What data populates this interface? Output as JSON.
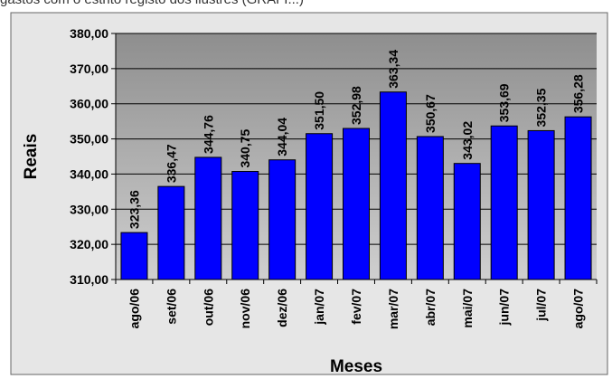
{
  "header": {
    "cropped_title": "gastos com o estrito registo dos ilustres (GRAFI...)"
  },
  "chart_data": {
    "type": "bar",
    "categories": [
      "ago/06",
      "set/06",
      "out/06",
      "nov/06",
      "dez/06",
      "jan/07",
      "fev/07",
      "mar/07",
      "abr/07",
      "mai/07",
      "jun/07",
      "jul/07",
      "ago/07"
    ],
    "values": [
      323.36,
      336.47,
      344.76,
      340.75,
      344.04,
      351.5,
      352.98,
      363.34,
      350.67,
      343.02,
      353.69,
      352.35,
      356.28
    ],
    "data_labels": [
      "323,36",
      "336,47",
      "344,76",
      "340,75",
      "344,04",
      "351,50",
      "352,98",
      "363,34",
      "350,67",
      "343,02",
      "353,69",
      "352,35",
      "356,28"
    ],
    "title": "",
    "xlabel": "Meses",
    "ylabel": "Reais",
    "ylim": [
      310,
      380
    ],
    "yticks": [
      "310,00",
      "320,00",
      "330,00",
      "340,00",
      "350,00",
      "360,00",
      "370,00",
      "380,00"
    ],
    "grid": true,
    "colors": {
      "bar": "#0000FF",
      "plot_area": "#A0A0A0",
      "background": "#E6E6E6",
      "gridline": "#000000"
    }
  }
}
